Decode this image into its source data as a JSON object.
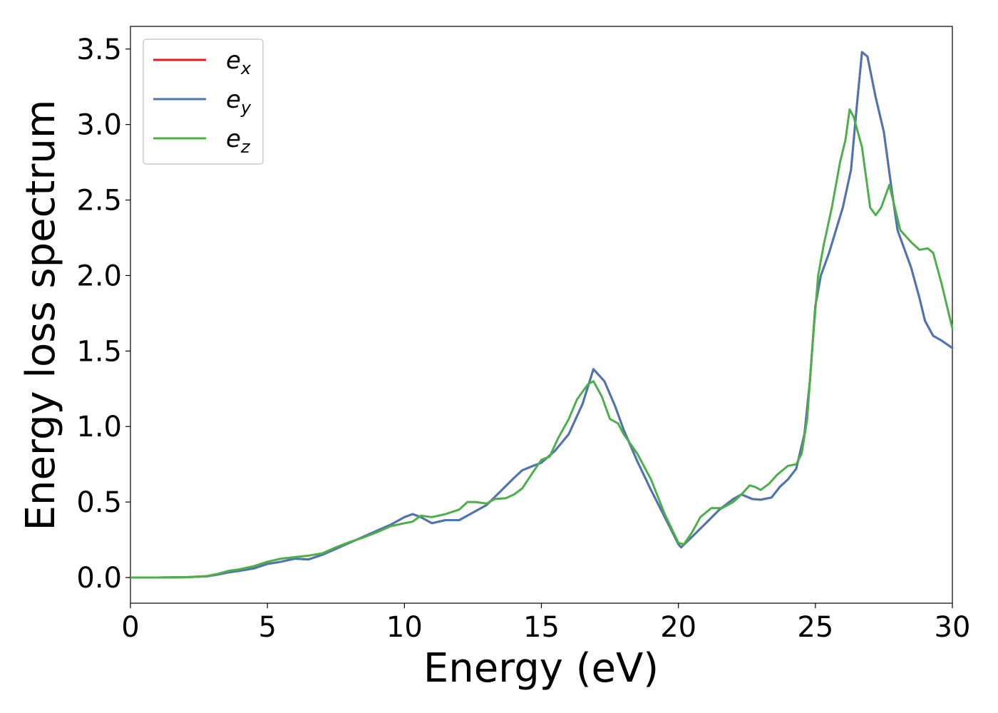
{
  "chart_data": {
    "type": "line",
    "xlabel": "Energy (eV)",
    "ylabel": "Energy loss spectrum",
    "xlim": [
      0,
      30
    ],
    "ylim": [
      -0.17,
      3.65
    ],
    "xticks": [
      0,
      5,
      10,
      15,
      20,
      25,
      30
    ],
    "yticks": [
      0.0,
      0.5,
      1.0,
      1.5,
      2.0,
      2.5,
      3.0,
      3.5
    ],
    "xtick_labels": [
      "0",
      "5",
      "10",
      "15",
      "20",
      "25",
      "30"
    ],
    "ytick_labels": [
      "0.0",
      "0.5",
      "1.0",
      "1.5",
      "2.0",
      "2.5",
      "3.0",
      "3.5"
    ],
    "grid": false,
    "legend_position": "top-left",
    "series": [
      {
        "name": "e",
        "subscript": "x",
        "color": "#e41a1c",
        "points": [
          [
            0,
            0
          ],
          [
            1,
            0
          ],
          [
            2,
            0.002
          ],
          [
            2.8,
            0.008
          ],
          [
            3.2,
            0.02
          ],
          [
            3.6,
            0.035
          ],
          [
            4,
            0.045
          ],
          [
            4.5,
            0.06
          ],
          [
            5,
            0.09
          ],
          [
            5.5,
            0.105
          ],
          [
            6,
            0.125
          ],
          [
            6.5,
            0.12
          ],
          [
            7,
            0.15
          ],
          [
            7.5,
            0.19
          ],
          [
            8,
            0.23
          ],
          [
            8.5,
            0.27
          ],
          [
            9,
            0.31
          ],
          [
            9.5,
            0.35
          ],
          [
            10,
            0.4
          ],
          [
            10.3,
            0.42
          ],
          [
            10.6,
            0.4
          ],
          [
            11,
            0.36
          ],
          [
            11.5,
            0.38
          ],
          [
            12,
            0.38
          ],
          [
            12.5,
            0.43
          ],
          [
            13,
            0.48
          ],
          [
            13.5,
            0.57
          ],
          [
            14,
            0.66
          ],
          [
            14.3,
            0.71
          ],
          [
            14.7,
            0.74
          ],
          [
            15,
            0.76
          ],
          [
            15.5,
            0.84
          ],
          [
            16,
            0.95
          ],
          [
            16.5,
            1.15
          ],
          [
            16.9,
            1.38
          ],
          [
            17.3,
            1.3
          ],
          [
            17.7,
            1.13
          ],
          [
            18,
            0.98
          ],
          [
            18.5,
            0.77
          ],
          [
            19,
            0.58
          ],
          [
            19.5,
            0.4
          ],
          [
            20,
            0.22
          ],
          [
            20.1,
            0.2
          ],
          [
            20.5,
            0.27
          ],
          [
            21,
            0.36
          ],
          [
            21.5,
            0.45
          ],
          [
            22,
            0.52
          ],
          [
            22.3,
            0.55
          ],
          [
            22.7,
            0.52
          ],
          [
            23,
            0.515
          ],
          [
            23.4,
            0.53
          ],
          [
            23.7,
            0.6
          ],
          [
            24,
            0.65
          ],
          [
            24.3,
            0.72
          ],
          [
            24.6,
            0.95
          ],
          [
            24.8,
            1.3
          ],
          [
            25,
            1.8
          ],
          [
            25.2,
            2.0
          ],
          [
            25.5,
            2.15
          ],
          [
            26,
            2.45
          ],
          [
            26.3,
            2.7
          ],
          [
            26.5,
            3.1
          ],
          [
            26.7,
            3.48
          ],
          [
            26.9,
            3.45
          ],
          [
            27.2,
            3.18
          ],
          [
            27.5,
            2.95
          ],
          [
            27.8,
            2.55
          ],
          [
            28,
            2.3
          ],
          [
            28.5,
            2.05
          ],
          [
            28.8,
            1.85
          ],
          [
            29,
            1.7
          ],
          [
            29.3,
            1.6
          ],
          [
            29.6,
            1.57
          ],
          [
            30,
            1.52
          ]
        ]
      },
      {
        "name": "e",
        "subscript": "y",
        "color": "#4a77b4",
        "points": [
          [
            0,
            0
          ],
          [
            1,
            0
          ],
          [
            2,
            0.002
          ],
          [
            2.8,
            0.008
          ],
          [
            3.2,
            0.02
          ],
          [
            3.6,
            0.035
          ],
          [
            4,
            0.045
          ],
          [
            4.5,
            0.06
          ],
          [
            5,
            0.09
          ],
          [
            5.5,
            0.105
          ],
          [
            6,
            0.125
          ],
          [
            6.5,
            0.12
          ],
          [
            7,
            0.15
          ],
          [
            7.5,
            0.19
          ],
          [
            8,
            0.23
          ],
          [
            8.5,
            0.27
          ],
          [
            9,
            0.31
          ],
          [
            9.5,
            0.35
          ],
          [
            10,
            0.4
          ],
          [
            10.3,
            0.42
          ],
          [
            10.6,
            0.4
          ],
          [
            11,
            0.36
          ],
          [
            11.5,
            0.38
          ],
          [
            12,
            0.38
          ],
          [
            12.5,
            0.43
          ],
          [
            13,
            0.48
          ],
          [
            13.5,
            0.57
          ],
          [
            14,
            0.66
          ],
          [
            14.3,
            0.71
          ],
          [
            14.7,
            0.74
          ],
          [
            15,
            0.76
          ],
          [
            15.5,
            0.84
          ],
          [
            16,
            0.95
          ],
          [
            16.5,
            1.15
          ],
          [
            16.9,
            1.38
          ],
          [
            17.3,
            1.3
          ],
          [
            17.7,
            1.13
          ],
          [
            18,
            0.98
          ],
          [
            18.5,
            0.77
          ],
          [
            19,
            0.58
          ],
          [
            19.5,
            0.4
          ],
          [
            20,
            0.22
          ],
          [
            20.1,
            0.2
          ],
          [
            20.5,
            0.27
          ],
          [
            21,
            0.36
          ],
          [
            21.5,
            0.45
          ],
          [
            22,
            0.52
          ],
          [
            22.3,
            0.55
          ],
          [
            22.7,
            0.52
          ],
          [
            23,
            0.515
          ],
          [
            23.4,
            0.53
          ],
          [
            23.7,
            0.6
          ],
          [
            24,
            0.65
          ],
          [
            24.3,
            0.72
          ],
          [
            24.6,
            0.95
          ],
          [
            24.8,
            1.3
          ],
          [
            25,
            1.8
          ],
          [
            25.2,
            2.0
          ],
          [
            25.5,
            2.15
          ],
          [
            26,
            2.45
          ],
          [
            26.3,
            2.7
          ],
          [
            26.5,
            3.1
          ],
          [
            26.7,
            3.48
          ],
          [
            26.9,
            3.45
          ],
          [
            27.2,
            3.18
          ],
          [
            27.5,
            2.95
          ],
          [
            27.8,
            2.55
          ],
          [
            28,
            2.3
          ],
          [
            28.5,
            2.05
          ],
          [
            28.8,
            1.85
          ],
          [
            29,
            1.7
          ],
          [
            29.3,
            1.6
          ],
          [
            29.6,
            1.57
          ],
          [
            30,
            1.52
          ]
        ]
      },
      {
        "name": "e",
        "subscript": "z",
        "color": "#4daf4a",
        "points": [
          [
            0,
            0
          ],
          [
            1,
            0
          ],
          [
            2,
            0.002
          ],
          [
            2.8,
            0.01
          ],
          [
            3.2,
            0.025
          ],
          [
            3.6,
            0.045
          ],
          [
            4,
            0.055
          ],
          [
            4.5,
            0.075
          ],
          [
            5,
            0.105
          ],
          [
            5.5,
            0.125
          ],
          [
            6,
            0.135
          ],
          [
            6.5,
            0.145
          ],
          [
            7,
            0.16
          ],
          [
            7.5,
            0.2
          ],
          [
            8,
            0.235
          ],
          [
            8.5,
            0.265
          ],
          [
            9,
            0.3
          ],
          [
            9.5,
            0.34
          ],
          [
            10,
            0.36
          ],
          [
            10.3,
            0.37
          ],
          [
            10.6,
            0.41
          ],
          [
            11,
            0.4
          ],
          [
            11.5,
            0.42
          ],
          [
            12,
            0.45
          ],
          [
            12.3,
            0.5
          ],
          [
            12.6,
            0.5
          ],
          [
            13,
            0.49
          ],
          [
            13.3,
            0.52
          ],
          [
            13.7,
            0.525
          ],
          [
            14,
            0.55
          ],
          [
            14.3,
            0.59
          ],
          [
            14.7,
            0.7
          ],
          [
            15,
            0.78
          ],
          [
            15.3,
            0.8
          ],
          [
            15.6,
            0.92
          ],
          [
            16,
            1.05
          ],
          [
            16.3,
            1.18
          ],
          [
            16.7,
            1.28
          ],
          [
            16.9,
            1.3
          ],
          [
            17.2,
            1.2
          ],
          [
            17.5,
            1.05
          ],
          [
            17.8,
            1.02
          ],
          [
            18,
            0.95
          ],
          [
            18.5,
            0.82
          ],
          [
            19,
            0.65
          ],
          [
            19.5,
            0.42
          ],
          [
            20,
            0.23
          ],
          [
            20.2,
            0.22
          ],
          [
            20.5,
            0.3
          ],
          [
            20.8,
            0.4
          ],
          [
            21.2,
            0.46
          ],
          [
            21.6,
            0.46
          ],
          [
            22,
            0.5
          ],
          [
            22.3,
            0.55
          ],
          [
            22.6,
            0.61
          ],
          [
            22.8,
            0.6
          ],
          [
            23,
            0.58
          ],
          [
            23.3,
            0.62
          ],
          [
            23.6,
            0.68
          ],
          [
            24,
            0.74
          ],
          [
            24.3,
            0.75
          ],
          [
            24.5,
            0.82
          ],
          [
            24.7,
            1.05
          ],
          [
            24.9,
            1.55
          ],
          [
            25.1,
            2.0
          ],
          [
            25.3,
            2.2
          ],
          [
            25.6,
            2.45
          ],
          [
            25.9,
            2.75
          ],
          [
            26.1,
            2.9
          ],
          [
            26.25,
            3.1
          ],
          [
            26.4,
            3.05
          ],
          [
            26.7,
            2.85
          ],
          [
            27,
            2.45
          ],
          [
            27.2,
            2.4
          ],
          [
            27.4,
            2.45
          ],
          [
            27.7,
            2.6
          ],
          [
            27.9,
            2.45
          ],
          [
            28.1,
            2.3
          ],
          [
            28.5,
            2.22
          ],
          [
            28.8,
            2.17
          ],
          [
            29.1,
            2.18
          ],
          [
            29.3,
            2.15
          ],
          [
            29.6,
            1.95
          ],
          [
            30,
            1.65
          ]
        ]
      }
    ]
  }
}
